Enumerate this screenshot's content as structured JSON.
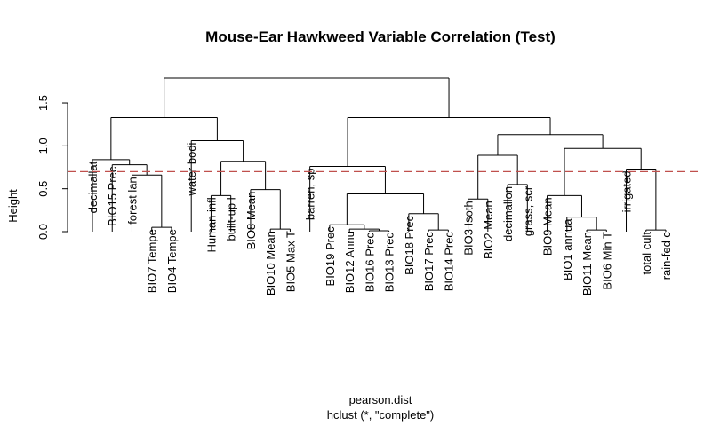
{
  "chart_data": {
    "type": "dendrogram",
    "title": "Mouse-Ear Hawkweed Variable Correlation (Test)",
    "ylabel": "Height",
    "xlabel": "pearson.dist",
    "sub": "hclust (*, \"complete\")",
    "ylim": [
      0,
      1.8
    ],
    "yticks": [
      0.0,
      0.5,
      1.0,
      1.5
    ],
    "ytick_labels": [
      "0.0",
      "0.5",
      "1.0",
      "1.5"
    ],
    "cutoff": 0.7,
    "labels": [
      "decimallat",
      "BIO15 Prec",
      "forest lan",
      "BIO7 Tempe",
      "BIO4 Tempe",
      "water bodi",
      "Human infl",
      "built-up l",
      "BIO8 Mean",
      "BIO10 Mean",
      "BIO5 Max T",
      "barren, sp",
      "BIO19 Prec",
      "BIO12 Annu",
      "BIO16 Prec",
      "BIO13 Prec",
      "BIO18 Prec",
      "BIO17 Prec",
      "BIO14 Prec",
      "BIO3 Isoth",
      "BIO2 Mean",
      "decimallon",
      "grass, scr",
      "BIO9 Mean",
      "BIO1 annua",
      "BIO11 Mean",
      "BIO6 Min T",
      "irrigated",
      "total cult",
      "rain-fed c"
    ],
    "merges": [
      {
        "a": 3,
        "b": 4,
        "h": 0.05
      },
      {
        "a": 2,
        "b": "m0",
        "h": 0.66
      },
      {
        "a": 1,
        "b": "m1",
        "h": 0.78
      },
      {
        "a": 0,
        "b": "m2",
        "h": 0.84
      },
      {
        "a": 6,
        "b": 7,
        "h": 0.42
      },
      {
        "a": 9,
        "b": 10,
        "h": 0.03
      },
      {
        "a": 8,
        "b": "m5",
        "h": 0.49
      },
      {
        "a": "m4",
        "b": "m6",
        "h": 0.82
      },
      {
        "a": 5,
        "b": "m7",
        "h": 1.06
      },
      {
        "a": "m3",
        "b": "m8",
        "h": 1.33
      },
      {
        "a": 14,
        "b": 15,
        "h": 0.01
      },
      {
        "a": 13,
        "b": "m10",
        "h": 0.03
      },
      {
        "a": 12,
        "b": "m11",
        "h": 0.08
      },
      {
        "a": 17,
        "b": 18,
        "h": 0.02
      },
      {
        "a": 16,
        "b": "m13",
        "h": 0.21
      },
      {
        "a": "m12",
        "b": "m14",
        "h": 0.44
      },
      {
        "a": 11,
        "b": "m15",
        "h": 0.76
      },
      {
        "a": 19,
        "b": 20,
        "h": 0.38
      },
      {
        "a": 21,
        "b": 22,
        "h": 0.55
      },
      {
        "a": "m17",
        "b": "m18",
        "h": 0.89
      },
      {
        "a": 25,
        "b": 26,
        "h": 0.02
      },
      {
        "a": 24,
        "b": "m20",
        "h": 0.17
      },
      {
        "a": 23,
        "b": "m21",
        "h": 0.42
      },
      {
        "a": 28,
        "b": 29,
        "h": 0.02
      },
      {
        "a": 27,
        "b": "m23",
        "h": 0.73
      },
      {
        "a": "m22",
        "b": "m24",
        "h": 0.97
      },
      {
        "a": "m19",
        "b": "m25",
        "h": 1.13
      },
      {
        "a": "m16",
        "b": "m26",
        "h": 1.33
      },
      {
        "a": "m9",
        "b": "m27",
        "h": 1.79
      }
    ]
  }
}
